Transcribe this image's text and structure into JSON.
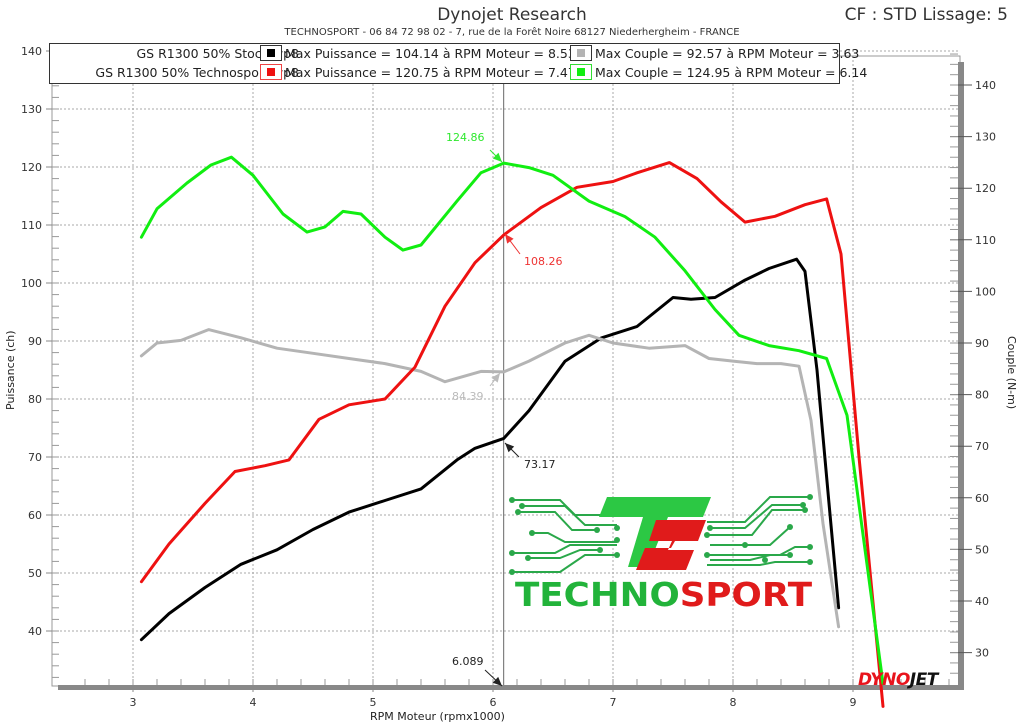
{
  "header": {
    "title": "Dynojet Research",
    "subtitle": "TECHNOSPORT - 06 84 72 98 02 - 7, rue de la Forêt Noire 68127 Niederhergheim - FRANCE",
    "cf": "CF : STD Lissage: 5"
  },
  "legend": {
    "rows": [
      {
        "file": "GS R1300 50% Stock.wp8",
        "power_color": "#000000",
        "power_text": "Max Puissance = 104.14 à RPM Moteur = 8.53",
        "torque_color": "#b4b4b4",
        "torque_text": "Max Couple = 92.57 à RPM Moteur = 3.63"
      },
      {
        "file": "GS R1300 50% Technosport.wp8",
        "power_color": "#ee1111",
        "power_text": "Max Puissance = 120.75 à RPM Moteur = 7.47",
        "torque_color": "#11ee11",
        "torque_text": "Max Couple = 124.95 à RPM Moteur = 6.14"
      }
    ]
  },
  "axes": {
    "x_label": "RPM Moteur (rpmx1000)",
    "y_left_label": "Puissance (ch)",
    "y_right_label": "Couple (N-m)",
    "x_ticks": [
      "3",
      "4",
      "5",
      "6",
      "7",
      "8",
      "9"
    ],
    "y_left_ticks": [
      "40",
      "50",
      "60",
      "70",
      "80",
      "90",
      "100",
      "110",
      "120",
      "130",
      "140"
    ],
    "y_right_ticks": [
      "30",
      "40",
      "50",
      "60",
      "70",
      "80",
      "90",
      "100",
      "110",
      "120",
      "130",
      "140"
    ]
  },
  "annotations": {
    "cursor_rpm": "6.089",
    "green_at_cursor": "124.86",
    "red_at_cursor": "108.26",
    "gray_at_cursor": "84.39",
    "black_at_cursor": "73.17"
  },
  "logo": {
    "techno": "TECHNO",
    "sport": "SPORT",
    "monogram": "TS",
    "dynojet_a": "DYNO",
    "dynojet_b": "JET"
  },
  "chart_data": {
    "type": "line",
    "title": "Dynojet Research",
    "subtitle": "TECHNOSPORT - 06 84 72 98 02 - 7, rue de la Forêt Noire 68127 Niederhergheim - FRANCE",
    "xlabel": "RPM Moteur (rpmx1000)",
    "ylabel": "Puissance (ch)",
    "y2label": "Couple (N-m)",
    "xlim": [
      2.4,
      9.9
    ],
    "ylim": [
      30,
      141
    ],
    "y2lim": [
      25,
      147
    ],
    "grid": true,
    "legend_position": "top",
    "cursor_x": 6.089,
    "series": [
      {
        "name": "GS R1300 50% Stock.wp8 - Puissance",
        "axis": "left",
        "color": "#000000",
        "x": [
          3.07,
          3.3,
          3.6,
          3.9,
          4.2,
          4.5,
          4.8,
          5.1,
          5.4,
          5.7,
          5.85,
          6.09,
          6.3,
          6.6,
          6.9,
          7.2,
          7.5,
          7.65,
          7.85,
          8.1,
          8.3,
          8.53,
          8.6,
          8.7,
          8.8,
          8.88
        ],
        "y": [
          38.5,
          43,
          47.5,
          51.5,
          54,
          57.5,
          60.5,
          62.5,
          64.5,
          69.5,
          71.5,
          73.2,
          78,
          86.5,
          90.5,
          92.5,
          97.5,
          97.2,
          97.5,
          100.5,
          102.5,
          104.1,
          102,
          85,
          62,
          44
        ]
      },
      {
        "name": "GS R1300 50% Stock.wp8 - Couple",
        "axis": "right",
        "color": "#b4b4b4",
        "x": [
          3.07,
          3.2,
          3.4,
          3.63,
          3.9,
          4.2,
          4.5,
          4.8,
          5.1,
          5.4,
          5.6,
          5.9,
          6.09,
          6.3,
          6.6,
          6.8,
          7.0,
          7.3,
          7.6,
          7.8,
          8.0,
          8.2,
          8.4,
          8.55,
          8.65,
          8.75,
          8.88
        ],
        "y": [
          87.5,
          90,
          90.5,
          92.6,
          91,
          89,
          88,
          87,
          86,
          84.5,
          82.5,
          84.5,
          84.4,
          86.5,
          90,
          91.5,
          90,
          89,
          89.5,
          87,
          86.5,
          86,
          86,
          85.5,
          75,
          55,
          35
        ]
      },
      {
        "name": "GS R1300 50% Technosport.wp8 - Puissance",
        "axis": "left",
        "color": "#ee1111",
        "x": [
          3.07,
          3.3,
          3.6,
          3.85,
          4.1,
          4.3,
          4.55,
          4.8,
          5.1,
          5.35,
          5.6,
          5.85,
          6.09,
          6.4,
          6.7,
          7.0,
          7.2,
          7.47,
          7.7,
          7.9,
          8.1,
          8.35,
          8.6,
          8.78,
          8.9,
          9.05,
          9.25
        ],
        "y": [
          48.5,
          55,
          62,
          67.5,
          68.5,
          69.5,
          76.5,
          79,
          80,
          85.5,
          96,
          103.5,
          108.3,
          113,
          116.5,
          117.5,
          119,
          120.75,
          118,
          114,
          110.5,
          111.5,
          113.5,
          114.5,
          105,
          70,
          27
        ]
      },
      {
        "name": "GS R1300 50% Technosport.wp8 - Couple",
        "axis": "right",
        "color": "#11ee11",
        "x": [
          3.07,
          3.2,
          3.45,
          3.65,
          3.82,
          4.0,
          4.25,
          4.45,
          4.6,
          4.75,
          4.9,
          5.1,
          5.25,
          5.4,
          5.7,
          5.9,
          6.09,
          6.3,
          6.5,
          6.8,
          7.1,
          7.35,
          7.6,
          7.85,
          8.05,
          8.3,
          8.55,
          8.78,
          8.95,
          9.1,
          9.25
        ],
        "y": [
          110.5,
          116,
          121,
          124.5,
          126,
          122.5,
          115,
          111.5,
          112.5,
          115.5,
          115,
          110.5,
          108,
          109,
          117.5,
          123,
          124.86,
          124,
          122.5,
          117.5,
          114.5,
          110.5,
          104,
          96.5,
          91.5,
          89.5,
          88.5,
          87,
          76,
          50,
          24
        ]
      }
    ]
  }
}
